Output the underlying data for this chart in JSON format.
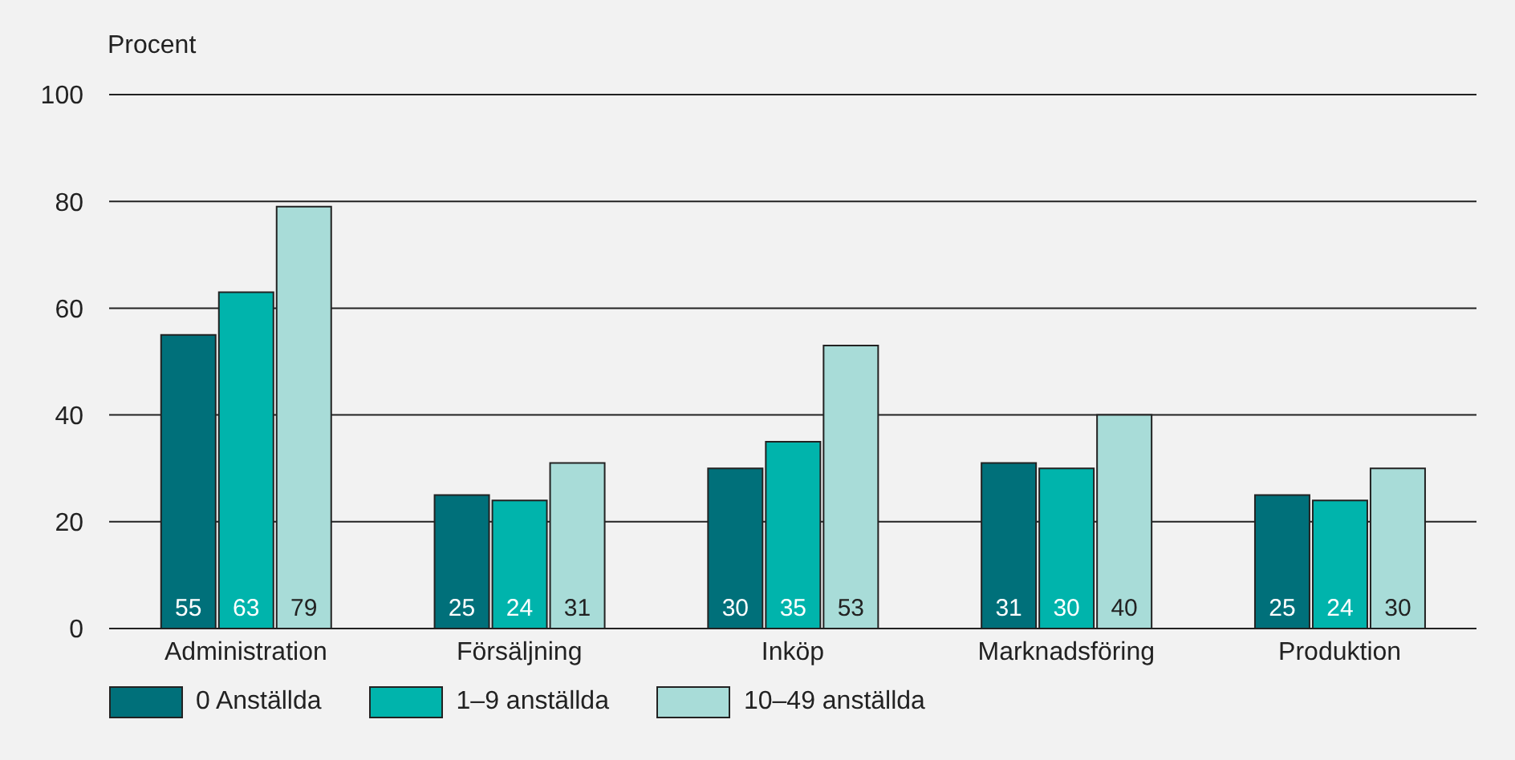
{
  "chart_data": {
    "type": "bar",
    "ylabel": "Procent",
    "categories": [
      "Administration",
      "Försäljning",
      "Inköp",
      "Marknadsföring",
      "Produktion"
    ],
    "series": [
      {
        "name": "0 Anställda",
        "color": "#00707a",
        "values": [
          55,
          25,
          30,
          31,
          25
        ]
      },
      {
        "name": "1–9 anställda",
        "color": "#00b4ac",
        "values": [
          63,
          24,
          35,
          30,
          24
        ]
      },
      {
        "name": "10–49 anställda",
        "color": "#a8dcd8",
        "values": [
          79,
          31,
          53,
          40,
          30
        ]
      }
    ],
    "ylim": [
      0,
      100
    ],
    "yticks": [
      0,
      20,
      40,
      60,
      80,
      100
    ],
    "grid": "y",
    "legend": "bottom left",
    "data_labels": true
  }
}
